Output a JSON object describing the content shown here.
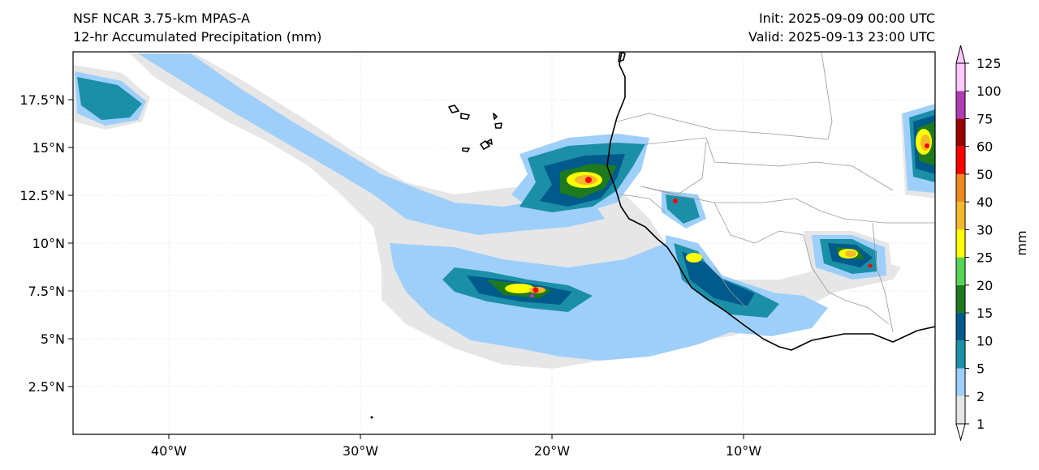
{
  "header": {
    "model": "NSF NCAR 3.75-km MPAS-A",
    "field": "12-hr Accumulated Precipitation (mm)",
    "init": "Init: 2025-09-09 00:00 UTC",
    "valid": "Valid: 2025-09-13 23:00 UTC"
  },
  "map": {
    "extent": {
      "lon": [
        -45,
        0
      ],
      "lat": [
        0,
        20
      ]
    },
    "lon_ticks": [
      {
        "value": -40,
        "label": "40°W"
      },
      {
        "value": -30,
        "label": "30°W"
      },
      {
        "value": -20,
        "label": "20°W"
      },
      {
        "value": -10,
        "label": "10°W"
      }
    ],
    "lat_ticks": [
      {
        "value": 2.5,
        "label": "2.5°N"
      },
      {
        "value": 5,
        "label": "5°N"
      },
      {
        "value": 7.5,
        "label": "7.5°N"
      },
      {
        "value": 10,
        "label": "10°N"
      },
      {
        "value": 12.5,
        "label": "12.5°N"
      },
      {
        "value": 15,
        "label": "15°N"
      },
      {
        "value": 17.5,
        "label": "17.5°N"
      }
    ],
    "colors": {
      "coastline": "#000000",
      "borders": "#999999",
      "gridlines": "#d9d9d9"
    }
  },
  "colorbar": {
    "unit": "mm",
    "levels": [
      {
        "label": "1",
        "color": "#e6e6e6"
      },
      {
        "label": "2",
        "color": "#9ecffa"
      },
      {
        "label": "5",
        "color": "#1b8fa7"
      },
      {
        "label": "10",
        "color": "#005a8c"
      },
      {
        "label": "15",
        "color": "#1e7a1e"
      },
      {
        "label": "20",
        "color": "#55d455"
      },
      {
        "label": "25",
        "color": "#ffff00"
      },
      {
        "label": "30",
        "color": "#f5b82a"
      },
      {
        "label": "40",
        "color": "#ee8a1e"
      },
      {
        "label": "50",
        "color": "#ff0000"
      },
      {
        "label": "60",
        "color": "#990000"
      },
      {
        "label": "75",
        "color": "#b03bb3"
      },
      {
        "label": "100",
        "color": "#ffc8ff"
      },
      {
        "label": "125",
        "color": ""
      }
    ],
    "under_color": "#ffffff",
    "over_color": "#ffc8ff"
  }
}
